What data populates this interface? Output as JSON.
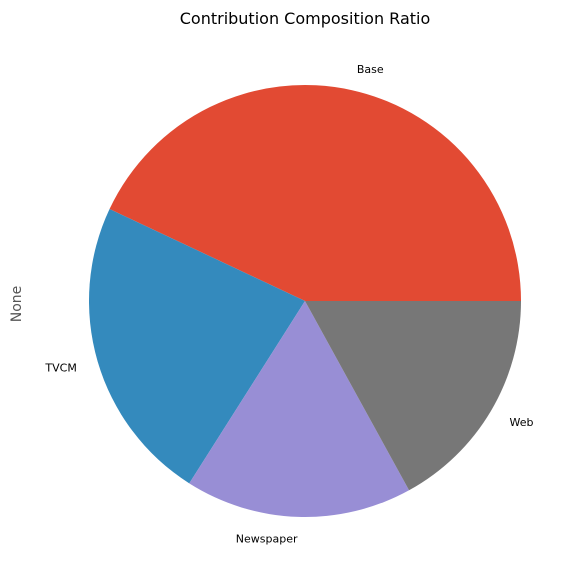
{
  "chart_data": {
    "type": "pie",
    "title": "Contribution Composition Ratio",
    "ylabel": "None",
    "start_angle_deg": 0,
    "direction": "counterclockwise",
    "slices": [
      {
        "label": "Base",
        "value": 43.0,
        "color": "#E24A33"
      },
      {
        "label": "TVCM",
        "value": 23.0,
        "color": "#348ABD"
      },
      {
        "label": "Newspaper",
        "value": 17.0,
        "color": "#988ED5"
      },
      {
        "label": "Web",
        "value": 17.0,
        "color": "#777777"
      }
    ]
  }
}
